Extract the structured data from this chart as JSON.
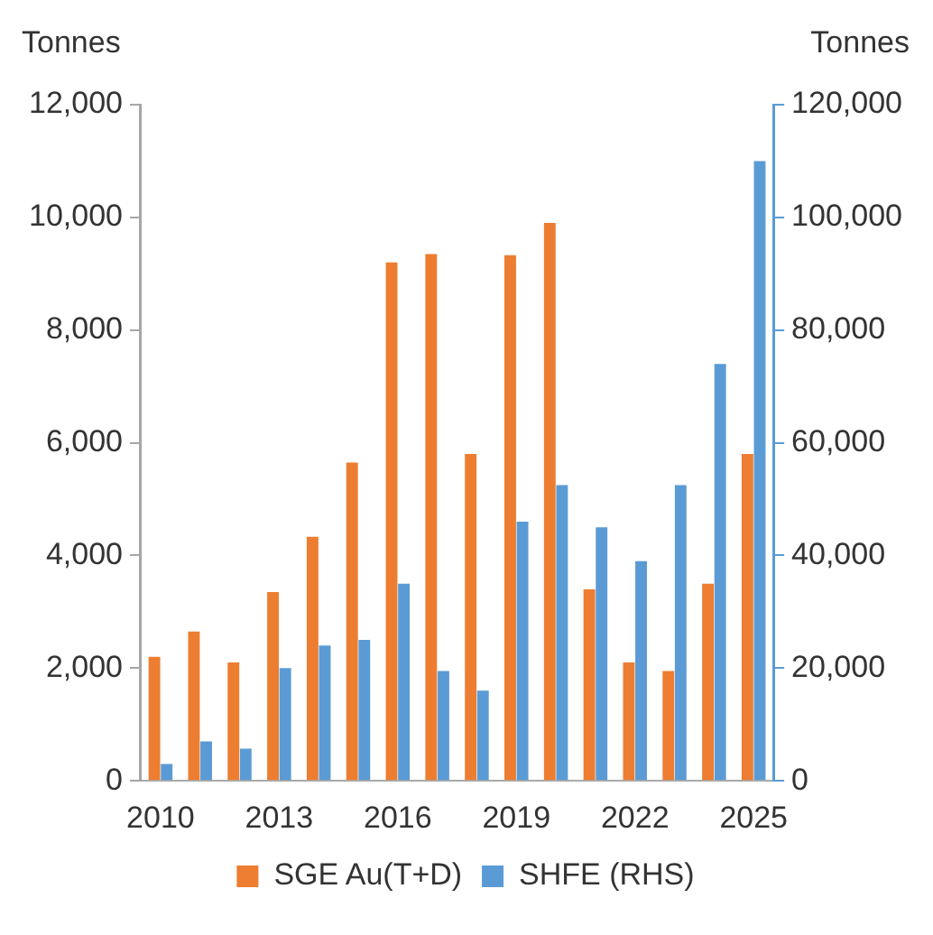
{
  "chart_data": {
    "type": "bar",
    "ylabel": "Tonnes",
    "y2label": "Tonnes",
    "categories": [
      "2010",
      null,
      null,
      "2013",
      null,
      null,
      "2016",
      null,
      null,
      "2019",
      null,
      null,
      "2022",
      null,
      null,
      "2025"
    ],
    "series": [
      {
        "name": "SGE Au(T+D)",
        "color": "#ed7d31",
        "values": [
          2200,
          2650,
          2100,
          3350,
          4330,
          5650,
          9200,
          9350,
          5800,
          9330,
          9900,
          3400,
          2100,
          1950,
          3500,
          5800
        ]
      },
      {
        "name": "SHFE (RHS)",
        "color": "#5b9bd5",
        "axis": "y2",
        "values": [
          3000,
          7000,
          5700,
          20000,
          24000,
          25000,
          35000,
          19500,
          16000,
          46000,
          52500,
          45000,
          39000,
          52500,
          74000,
          110000
        ]
      }
    ],
    "ylim": [
      0,
      12000
    ],
    "yticks": [
      0,
      {
        "value": 2000,
        "label": "2,000"
      },
      {
        "value": 4000,
        "label": "4,000"
      },
      {
        "value": 6000,
        "label": "6,000"
      },
      {
        "value": 8000,
        "label": "8,000"
      },
      {
        "value": 10000,
        "label": "10,000"
      },
      {
        "value": 12000,
        "label": "12,000"
      }
    ],
    "y2lim": [
      0,
      120000
    ],
    "y2ticks": [
      0,
      {
        "value": 20000,
        "label": "20,000"
      },
      {
        "value": 40000,
        "label": "40,000"
      },
      {
        "value": 60000,
        "label": "60,000"
      },
      {
        "value": 80000,
        "label": "80,000"
      },
      {
        "value": 100000,
        "label": "100,000"
      },
      {
        "value": 120000,
        "label": "120,000"
      }
    ],
    "grid": false,
    "legend": "bottom"
  }
}
